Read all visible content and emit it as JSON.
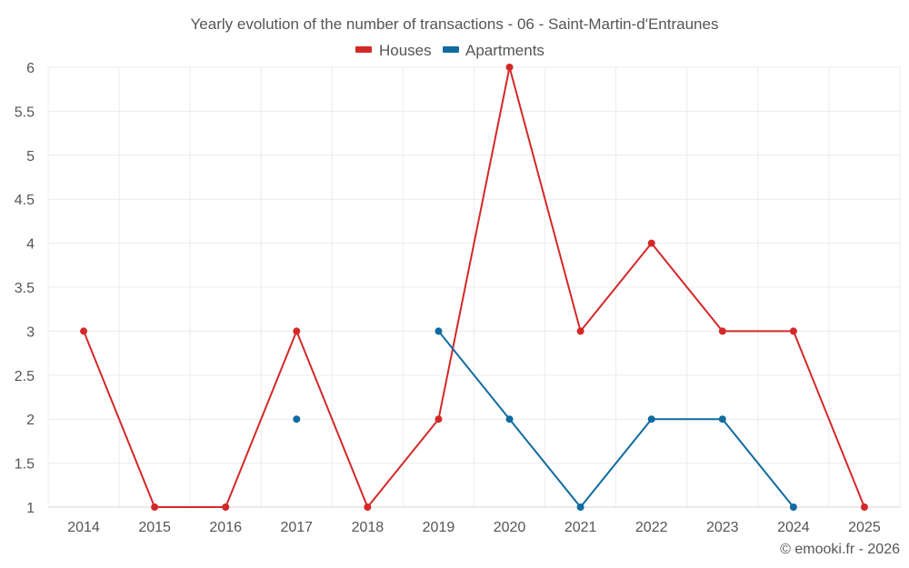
{
  "chart_data": {
    "type": "line",
    "title": "Yearly evolution of the number of transactions - 06 - Saint-Martin-d'Entraunes",
    "categories": [
      "2014",
      "2015",
      "2016",
      "2017",
      "2018",
      "2019",
      "2020",
      "2021",
      "2022",
      "2023",
      "2024",
      "2025"
    ],
    "series": [
      {
        "name": "Houses",
        "color": "#d42828",
        "values": [
          3,
          1,
          1,
          3,
          1,
          2,
          6,
          3,
          4,
          3,
          3,
          1
        ]
      },
      {
        "name": "Apartments",
        "color": "#0f6ba0",
        "values": [
          null,
          null,
          null,
          2,
          null,
          3,
          2,
          1,
          2,
          2,
          1,
          null
        ]
      }
    ],
    "ylim": [
      1,
      6
    ],
    "yticks": [
      "1",
      "1.5",
      "2",
      "2.5",
      "3",
      "3.5",
      "4",
      "4.5",
      "5",
      "5.5",
      "6"
    ],
    "legend_position": "top-center",
    "grid": true,
    "credit": "© emooki.fr - 2026"
  }
}
